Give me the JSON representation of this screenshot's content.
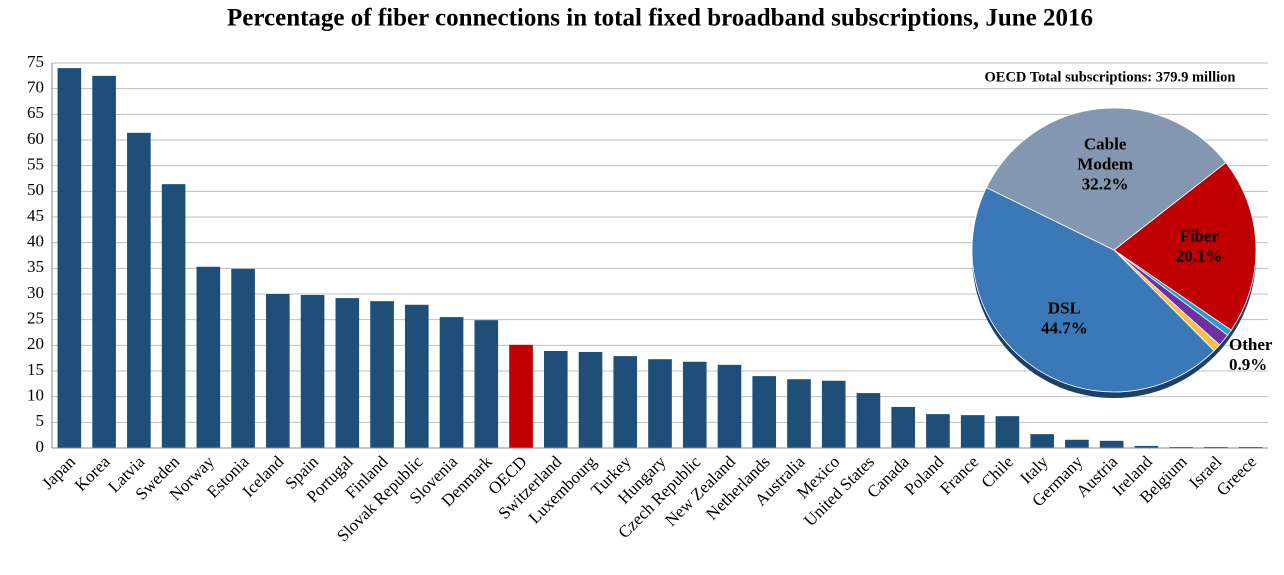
{
  "chart_data": [
    {
      "type": "bar",
      "title": "Percentage of fiber connections in total fixed broadband subscriptions, June 2016",
      "categories": [
        "Japan",
        "Korea",
        "Latvia",
        "Sweden",
        "Norway",
        "Estonia",
        "Iceland",
        "Spain",
        "Portugal",
        "Finland",
        "Slovak Republic",
        "Slovenia",
        "Denmark",
        "OECD",
        "Switzerland",
        "Luxembourg",
        "Turkey",
        "Hungary",
        "Czech Republic",
        "New Zealand",
        "Netherlands",
        "Australia",
        "Mexico",
        "United States",
        "Canada",
        "Poland",
        "France",
        "Chile",
        "Italy",
        "Germany",
        "Austria",
        "Ireland",
        "Belgium",
        "Israel",
        "Greece"
      ],
      "values": [
        74.0,
        72.5,
        61.4,
        51.4,
        35.3,
        34.9,
        30.0,
        29.8,
        29.2,
        28.6,
        27.9,
        25.5,
        24.9,
        20.1,
        18.9,
        18.7,
        17.9,
        17.3,
        16.8,
        16.2,
        14.0,
        13.4,
        13.1,
        10.7,
        8.0,
        6.6,
        6.4,
        6.2,
        2.7,
        1.6,
        1.4,
        0.4,
        0.2,
        0.2,
        0.2
      ],
      "colors": [
        "#1f4e79",
        "#1f4e79",
        "#1f4e79",
        "#1f4e79",
        "#1f4e79",
        "#1f4e79",
        "#1f4e79",
        "#1f4e79",
        "#1f4e79",
        "#1f4e79",
        "#1f4e79",
        "#1f4e79",
        "#1f4e79",
        "#c00000",
        "#1f4e79",
        "#1f4e79",
        "#1f4e79",
        "#1f4e79",
        "#1f4e79",
        "#1f4e79",
        "#1f4e79",
        "#1f4e79",
        "#1f4e79",
        "#1f4e79",
        "#1f4e79",
        "#1f4e79",
        "#1f4e79",
        "#1f4e79",
        "#1f4e79",
        "#1f4e79",
        "#1f4e79",
        "#1f4e79",
        "#1f4e79",
        "#1f4e79",
        "#1f4e79"
      ],
      "ylim": [
        0,
        75
      ],
      "yticks": [
        0,
        5,
        10,
        15,
        20,
        25,
        30,
        35,
        40,
        45,
        50,
        55,
        60,
        65,
        70,
        75
      ],
      "grid": true
    },
    {
      "type": "pie",
      "title": "OECD Total subscriptions: 379.9 million",
      "categories": [
        "Fiber",
        null,
        null,
        "Other",
        "DSL",
        "Cable Modem"
      ],
      "values": [
        20.1,
        0.7,
        1.4,
        0.9,
        44.7,
        32.2
      ],
      "value_labels": [
        "20.1%",
        null,
        null,
        "0.9%",
        "44.7%",
        "32.2%"
      ],
      "colors": [
        "#c00000",
        "#1fa0db",
        "#7030a0",
        "#f2c14e",
        "#3a78b8",
        "#8497b0"
      ]
    }
  ]
}
